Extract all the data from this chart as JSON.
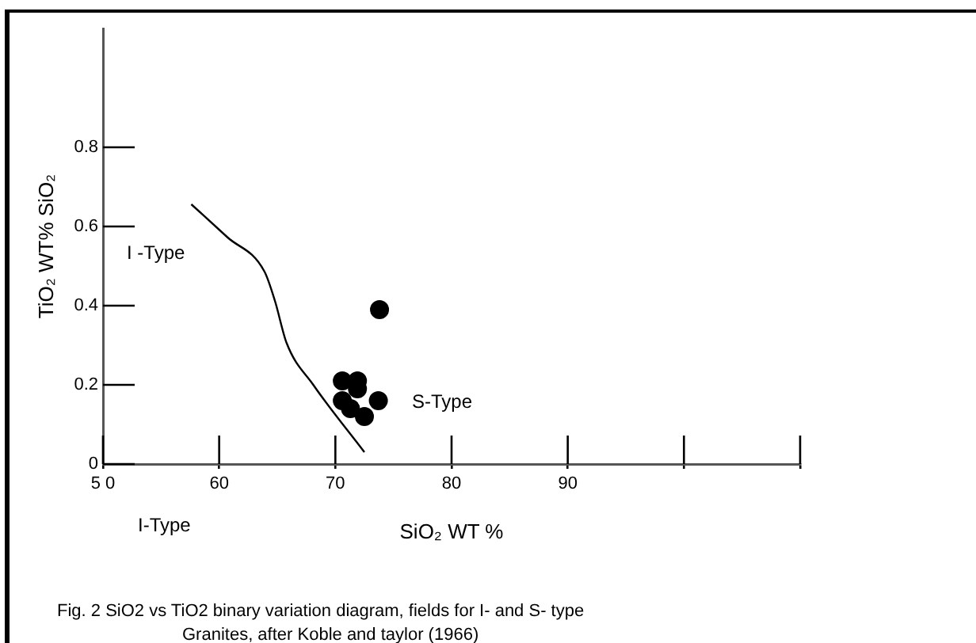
{
  "chart_data": {
    "type": "scatter",
    "xlabel": "SiO₂ WT %",
    "ylabel": "TiO₂ WT% SiO₂",
    "xlim": [
      50,
      110
    ],
    "ylim": [
      0,
      1.1
    ],
    "xticks": [
      {
        "value": 50,
        "label": "5 0"
      },
      60,
      70,
      80,
      90,
      {
        "value": 100,
        "label": null
      },
      {
        "value": 110,
        "label": null
      }
    ],
    "yticks": [
      0,
      0.2,
      0.4,
      0.6,
      0.8
    ],
    "series": [
      {
        "color": "#000000",
        "marker": "circle",
        "x": [
          73.8,
          70.6,
          71.9,
          70.6,
          71.9,
          71.3,
          72.5,
          73.7
        ],
        "values": [
          0.39,
          0.21,
          0.21,
          0.16,
          0.19,
          0.14,
          0.12,
          0.16
        ]
      },
      {
        "type": "line",
        "color": "#000000",
        "marker": "none",
        "x": [
          57.6,
          60.7,
          63.9,
          64.8,
          65.8,
          68.1,
          72.5
        ],
        "values": [
          0.656,
          0.573,
          0.486,
          0.412,
          0.306,
          0.2,
          0.03
        ]
      }
    ],
    "annotations": [
      "I -Type",
      "S-Type",
      "I-Type",
      "Fig. 2 SiO2 vs TiO2 binary variation diagram, fields for I- and S- type",
      "Granites, after Koble and taylor (1966)"
    ],
    "grid": false,
    "legend": false
  }
}
